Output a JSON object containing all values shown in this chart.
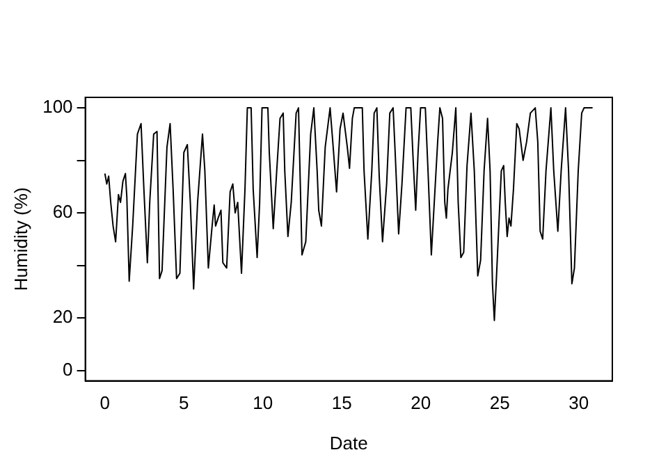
{
  "chart_data": {
    "type": "line",
    "xlabel": "Date",
    "ylabel": "Humidity (%)",
    "x": [
      0,
      0.12,
      0.24,
      0.37,
      0.52,
      0.68,
      0.86,
      0.99,
      1.14,
      1.3,
      1.39,
      1.54,
      1.76,
      2.06,
      2.29,
      2.47,
      2.69,
      2.84,
      3.09,
      3.3,
      3.46,
      3.62,
      3.93,
      4.13,
      4.32,
      4.54,
      4.75,
      5.0,
      5.22,
      5.41,
      5.62,
      5.87,
      6.18,
      6.33,
      6.55,
      6.79,
      6.92,
      7.01,
      7.17,
      7.35,
      7.47,
      7.71,
      7.93,
      8.1,
      8.25,
      8.41,
      8.65,
      8.87,
      9.02,
      9.26,
      9.39,
      9.64,
      9.8,
      9.95,
      10.32,
      10.41,
      10.66,
      10.88,
      11.09,
      11.29,
      11.39,
      11.59,
      11.8,
      12.11,
      12.26,
      12.31,
      12.48,
      12.72,
      13.03,
      13.23,
      13.44,
      13.54,
      13.71,
      13.95,
      14.26,
      14.43,
      14.67,
      14.89,
      15.08,
      15.35,
      15.49,
      15.67,
      15.79,
      16.3,
      16.41,
      16.65,
      16.9,
      17.05,
      17.22,
      17.37,
      17.58,
      17.84,
      18.04,
      18.25,
      18.38,
      18.6,
      18.81,
      19.07,
      19.37,
      19.52,
      19.68,
      19.83,
      19.99,
      20.29,
      20.46,
      20.67,
      21.07,
      21.21,
      21.38,
      21.52,
      21.62,
      21.72,
      22.0,
      22.22,
      22.37,
      22.54,
      22.72,
      22.93,
      23.18,
      23.39,
      23.61,
      23.79,
      24.01,
      24.23,
      24.39,
      24.54,
      24.66,
      24.79,
      25.1,
      25.25,
      25.35,
      25.47,
      25.59,
      25.71,
      25.87,
      26.08,
      26.23,
      26.48,
      26.7,
      26.94,
      27.25,
      27.41,
      27.56,
      27.72,
      27.93,
      28.24,
      28.42,
      28.68,
      28.89,
      29.17,
      29.36,
      29.57,
      29.73,
      29.97,
      30.19,
      30.34,
      30.88
    ],
    "values": [
      75,
      71,
      74,
      64,
      55,
      49,
      67,
      64,
      72,
      75,
      66,
      34,
      55,
      90,
      94,
      69,
      41,
      64,
      90,
      91,
      35,
      38,
      85,
      94,
      69,
      35,
      37,
      83,
      86,
      64,
      31,
      64,
      90,
      76,
      39,
      55,
      63,
      55,
      58,
      61,
      41,
      39,
      68,
      71,
      60,
      64,
      37,
      69,
      100,
      100,
      69,
      43,
      64,
      100,
      100,
      83,
      54,
      76,
      96,
      98,
      76,
      51,
      64,
      98,
      100,
      87,
      44,
      49,
      90,
      100,
      76,
      61,
      55,
      85,
      100,
      87,
      68,
      92,
      98,
      85,
      77,
      96,
      100,
      100,
      76,
      50,
      76,
      98,
      100,
      74,
      49,
      71,
      98,
      100,
      83,
      52,
      71,
      100,
      100,
      80,
      61,
      83,
      100,
      100,
      76,
      44,
      87,
      100,
      96,
      64,
      58,
      69,
      83,
      100,
      64,
      43,
      45,
      78,
      98,
      76,
      36,
      42,
      76,
      96,
      76,
      33,
      19,
      35,
      76,
      78,
      64,
      51,
      58,
      55,
      69,
      94,
      92,
      80,
      87,
      98,
      100,
      87,
      53,
      50,
      76,
      100,
      76,
      53,
      76,
      100,
      76,
      33,
      39,
      76,
      98,
      100,
      100
    ],
    "color": "#000000",
    "xlim": [
      -1.24,
      32.13
    ],
    "ylim": [
      -4,
      104
    ],
    "xticks": [
      0,
      5,
      10,
      15,
      20,
      25,
      30
    ],
    "yticks": [
      0,
      20,
      {
        "value": 40,
        "label": null
      },
      60,
      {
        "value": 80,
        "label": null
      },
      100
    ],
    "grid": false,
    "legend": false,
    "marker": "none",
    "line_style": "solid"
  }
}
